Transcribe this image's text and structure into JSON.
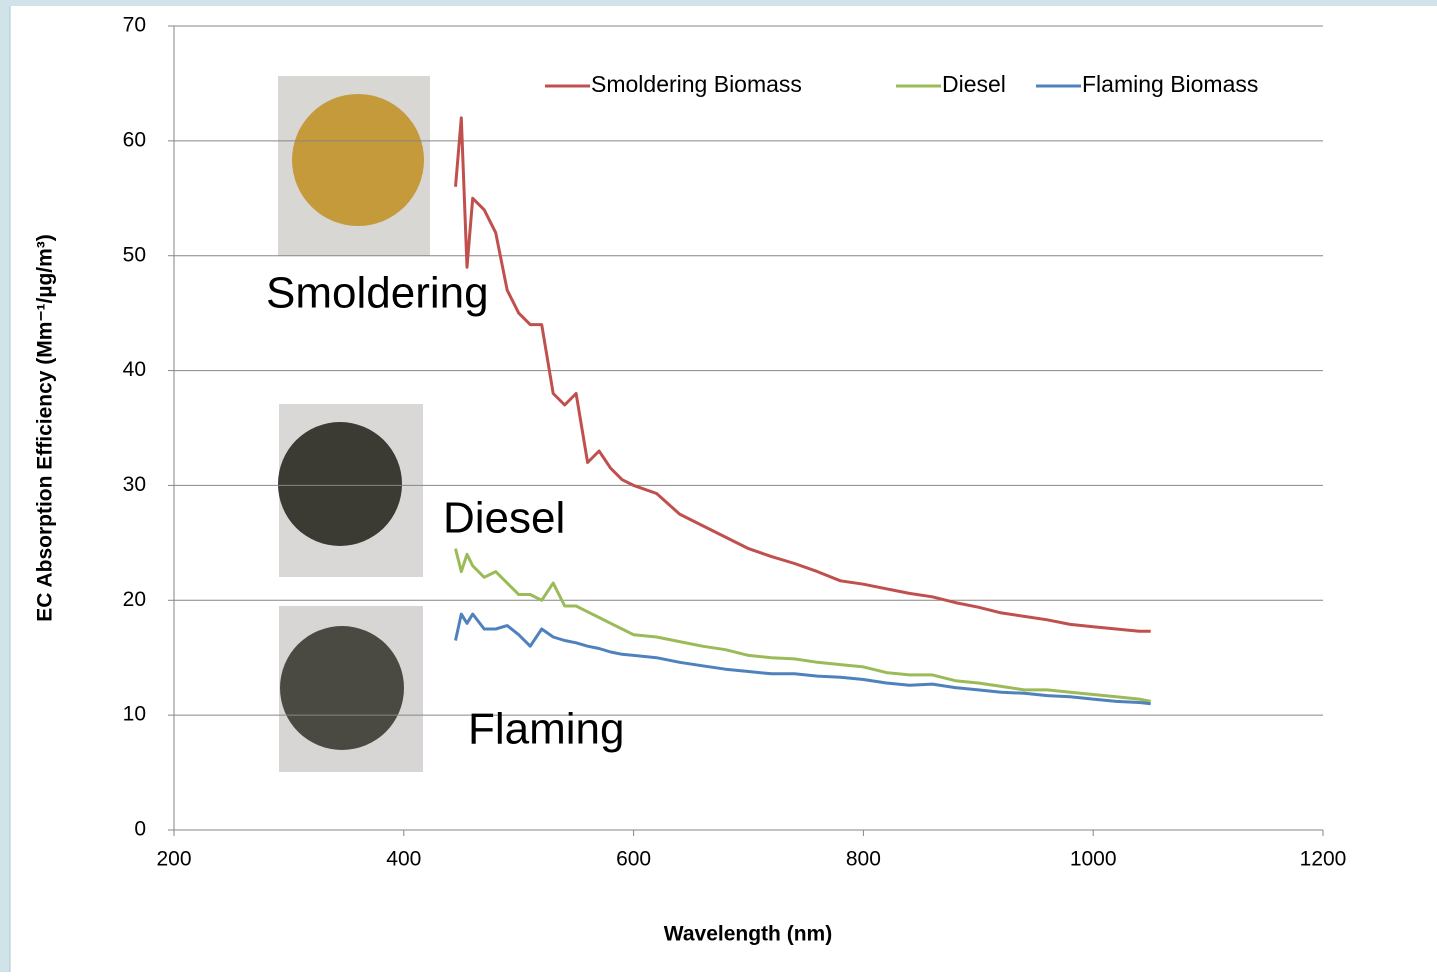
{
  "chart_data": {
    "type": "line",
    "y_label": "EC Absorption Efficiency (Mm⁻¹/µg/m³)",
    "x_label": "Wavelength (nm)",
    "x": [
      445,
      450,
      455,
      460,
      470,
      480,
      490,
      500,
      510,
      520,
      530,
      540,
      550,
      560,
      570,
      580,
      590,
      600,
      620,
      640,
      660,
      680,
      700,
      720,
      740,
      760,
      780,
      800,
      820,
      840,
      860,
      880,
      900,
      920,
      940,
      960,
      980,
      1000,
      1020,
      1040,
      1050
    ],
    "series": [
      {
        "name": "Smoldering Biomass",
        "color": "#c0504d",
        "values": [
          56,
          62,
          49,
          55,
          54,
          52,
          47,
          45,
          44,
          44,
          38,
          37,
          38,
          32,
          33,
          31.5,
          30.5,
          30,
          29.3,
          27.5,
          26.5,
          25.5,
          24.5,
          23.8,
          23.2,
          22.5,
          21.7,
          21.4,
          21,
          20.6,
          20.3,
          19.8,
          19.4,
          18.9,
          18.6,
          18.3,
          17.9,
          17.7,
          17.5,
          17.3,
          17.3
        ]
      },
      {
        "name": "Diesel",
        "color": "#9bbb59",
        "values": [
          24.5,
          22.5,
          24,
          23,
          22,
          22.5,
          21.5,
          20.5,
          20.5,
          20,
          21.5,
          19.5,
          19.5,
          19,
          18.5,
          18,
          17.5,
          17,
          16.8,
          16.4,
          16,
          15.7,
          15.2,
          15,
          14.9,
          14.6,
          14.4,
          14.2,
          13.7,
          13.5,
          13.5,
          13,
          12.8,
          12.5,
          12.2,
          12.2,
          12,
          11.8,
          11.6,
          11.4,
          11.2
        ]
      },
      {
        "name": "Flaming Biomass",
        "color": "#4f81bd",
        "values": [
          16.5,
          18.8,
          18,
          18.8,
          17.5,
          17.5,
          17.8,
          17,
          16,
          17.5,
          16.8,
          16.5,
          16.3,
          16,
          15.8,
          15.5,
          15.3,
          15.2,
          15,
          14.6,
          14.3,
          14,
          13.8,
          13.6,
          13.6,
          13.4,
          13.3,
          13.1,
          12.8,
          12.6,
          12.7,
          12.4,
          12.2,
          12,
          11.9,
          11.7,
          11.6,
          11.4,
          11.2,
          11.1,
          11
        ]
      }
    ],
    "annotations": [
      {
        "text": "Smoldering",
        "color": "#c00000"
      },
      {
        "text": "Diesel",
        "color": "#2e3a87"
      },
      {
        "text": "Flaming",
        "color": "#6cc0c8"
      }
    ],
    "xlim": [
      200,
      1200
    ],
    "xticks": [
      200,
      400,
      600,
      800,
      1000,
      1200
    ],
    "ylim": [
      0,
      70
    ],
    "yticks": [
      0,
      10,
      20,
      30,
      40,
      50,
      60,
      70
    ],
    "grid": true,
    "legend": "top-right"
  }
}
